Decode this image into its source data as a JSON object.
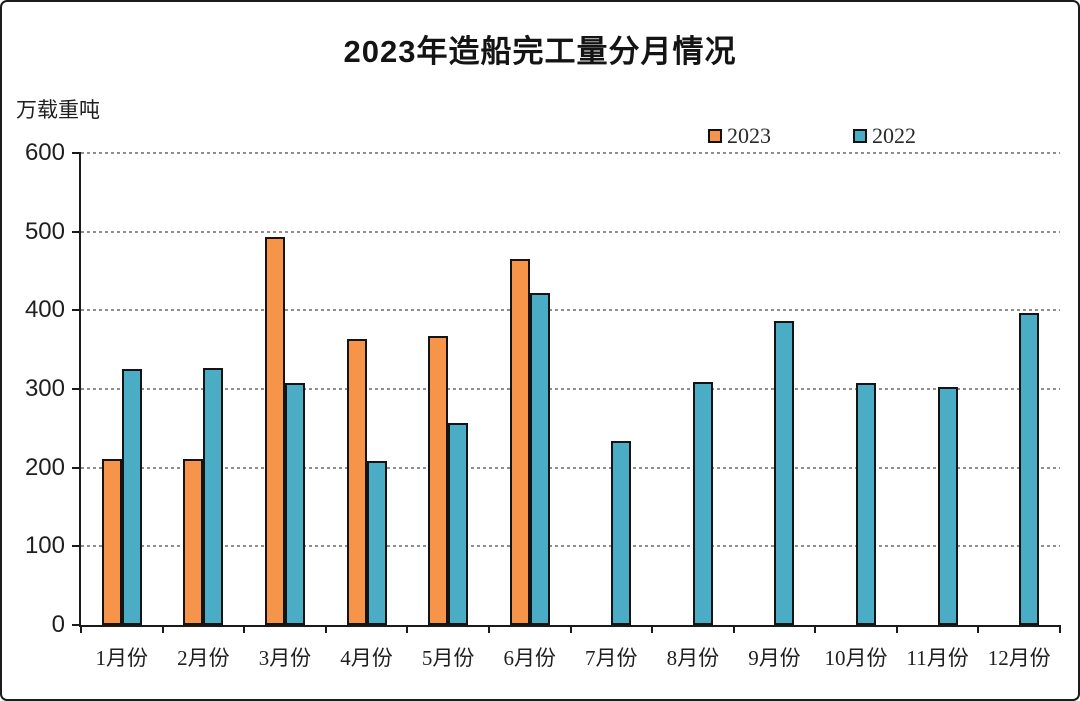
{
  "window": {
    "background": "#ffffff",
    "frame_border_color": "#1c1c1c"
  },
  "header": {
    "title": "2023年造船完工量分月情况",
    "unit_label": "万载重吨"
  },
  "legend": {
    "items": [
      {
        "label": "2023",
        "color": "#F6954A"
      },
      {
        "label": "2022",
        "color": "#4AACC5"
      }
    ]
  },
  "chart_data": {
    "type": "bar",
    "title": "2023年造船完工量分月情况",
    "ylabel": "万载重吨",
    "xlabel": "",
    "categories": [
      "1月份",
      "2月份",
      "3月份",
      "4月份",
      "5月份",
      "6月份",
      "7月份",
      "8月份",
      "9月份",
      "10月份",
      "11月份",
      "12月份"
    ],
    "series": [
      {
        "name": "2023",
        "color": "#F6954A",
        "values": [
          211,
          211,
          493,
          363,
          367,
          465,
          null,
          null,
          null,
          null,
          null,
          null
        ]
      },
      {
        "name": "2022",
        "color": "#4AACC5",
        "values": [
          325,
          327,
          308,
          209,
          257,
          422,
          234,
          309,
          386,
          307,
          303,
          396
        ]
      }
    ],
    "ylim": [
      0,
      600
    ],
    "ytick_interval": 100,
    "grid": "horizontal-dashed",
    "legend_position": "top-right",
    "bar_border_color": "#141414",
    "axis_color": "#1a1a1a",
    "gridline_color": "#8f8f8f"
  }
}
